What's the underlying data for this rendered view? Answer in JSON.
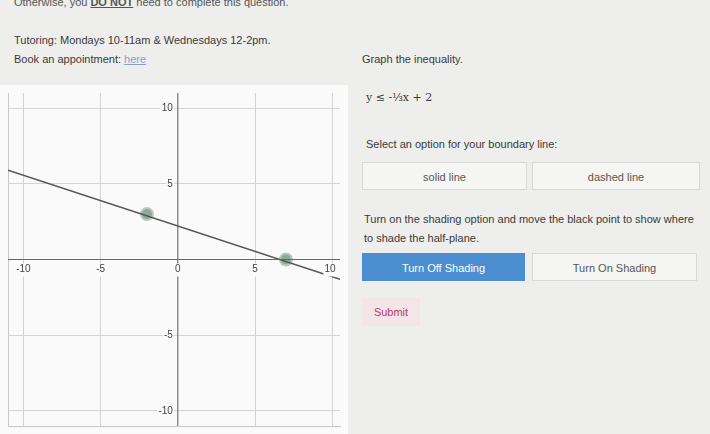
{
  "header": {
    "notice": [
      "Otherwise, you ",
      "DO NOT",
      " need to complete this question."
    ],
    "tutoring": "Tutoring: Mondays 10-11am & Wednesdays 12-2pm.",
    "appointment": {
      "text": "Book an appointment:",
      "link": "here"
    }
  },
  "question": {
    "prompt": "Graph the inequality.",
    "inequality": "y ≤ -⅓x + 2",
    "boundary_prompt": "Select an option for your boundary line:",
    "boundary_options": [
      "solid line",
      "dashed line"
    ],
    "shading_prompt": "Turn on the shading option and move the black point to show where to shade the half-plane.",
    "shading_options": [
      "Turn Off Shading",
      "Turn On Shading"
    ],
    "submit": "Submit"
  },
  "chart_data": {
    "type": "line",
    "xlim": [
      -11,
      10.5
    ],
    "ylim": [
      -11,
      11
    ],
    "xticks": [
      -10,
      -5,
      0,
      5,
      10
    ],
    "yticks": [
      -10,
      -5,
      5,
      10
    ],
    "grid": true,
    "series": [
      {
        "type": "line",
        "color": "#555555",
        "x": [
          -11,
          10.5
        ],
        "values": [
          5.9,
          -1.3
        ]
      },
      {
        "type": "scatter",
        "color": "#8fa89a",
        "marker": "circle",
        "x": [
          -2,
          7
        ],
        "values": [
          3,
          0
        ]
      }
    ]
  }
}
